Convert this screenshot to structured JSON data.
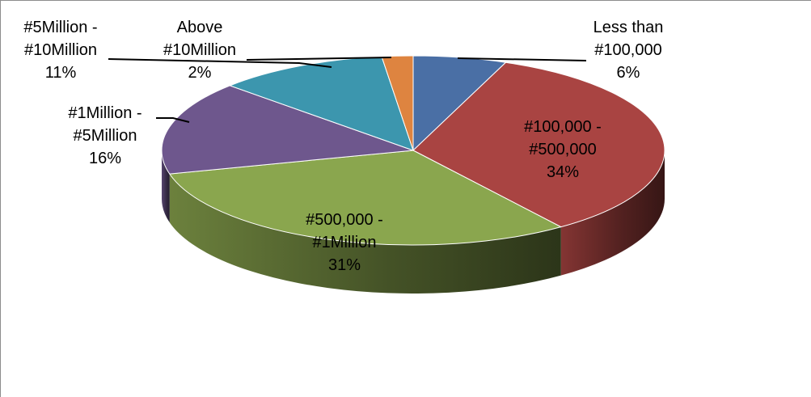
{
  "chart_data": {
    "type": "pie",
    "title": "",
    "style": "3d",
    "slices": [
      {
        "label": "Less than #100,000",
        "label_lines": [
          "Less than",
          "#100,000",
          "6%"
        ],
        "value": 6,
        "color": "#4A6FA5",
        "label_placement": "outside"
      },
      {
        "label": "#100,000 - #500,000",
        "label_lines": [
          "#100,000 -",
          "#500,000",
          "34%"
        ],
        "value": 34,
        "color": "#A94442",
        "label_placement": "inside"
      },
      {
        "label": "#500,000 - #1Million",
        "label_lines": [
          "#500,000 -",
          "#1Million",
          "31%"
        ],
        "value": 31,
        "color": "#8AA64E",
        "label_placement": "inside"
      },
      {
        "label": "#1Million - #5Million",
        "label_lines": [
          "#1Million -",
          "#5Million",
          "16%"
        ],
        "value": 16,
        "color": "#6E578D",
        "label_placement": "outside"
      },
      {
        "label": "#5Million - #10Million",
        "label_lines": [
          "#5Million -",
          "#10Million",
          "11%"
        ],
        "value": 11,
        "color": "#3C96AE",
        "label_placement": "outside"
      },
      {
        "label": "Above #10Million",
        "label_lines": [
          "Above",
          "#10Million",
          "2%"
        ],
        "value": 2,
        "color": "#DE8440",
        "label_placement": "outside"
      }
    ],
    "legend": "none"
  }
}
